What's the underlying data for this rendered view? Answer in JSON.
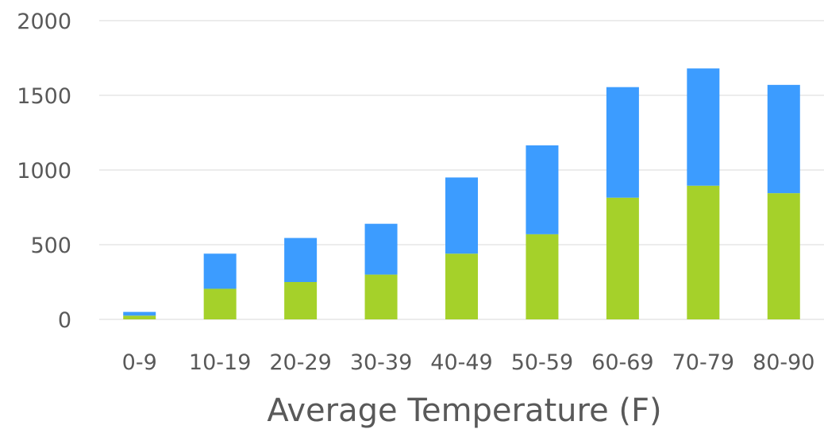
{
  "chart_data": {
    "type": "bar",
    "stacked": true,
    "categories": [
      "0-9",
      "10-19",
      "20-29",
      "30-39",
      "40-49",
      "50-59",
      "60-69",
      "70-79",
      "80-90"
    ],
    "series": [
      {
        "values": [
          25,
          205,
          250,
          300,
          440,
          570,
          815,
          895,
          845
        ],
        "color": "#a5d12a"
      },
      {
        "values": [
          25,
          235,
          295,
          340,
          510,
          595,
          740,
          785,
          725
        ],
        "color": "#3c9cff"
      }
    ],
    "xlabel": "Average Temperature (F)",
    "ylabel": "",
    "ylim": [
      0,
      2000
    ],
    "yticks": [
      "0",
      "500",
      "1000",
      "1500",
      "2000"
    ],
    "grid": true
  }
}
